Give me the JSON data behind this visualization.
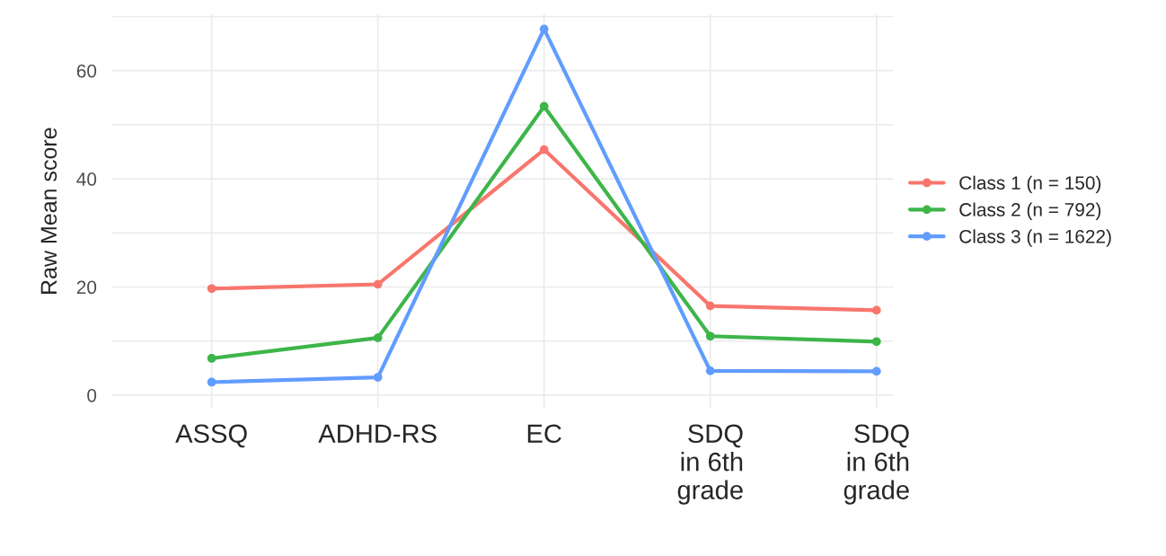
{
  "chart_data": {
    "type": "line",
    "ylabel": "Raw Mean score",
    "categories": [
      "ASSQ",
      "ADHD-RS",
      "EC",
      "SDQ\nin 6th\ngrade",
      "SDQ\nin 6th\ngrade"
    ],
    "series": [
      {
        "name": "Class 1 (n = 150)",
        "color": "#f8766d",
        "values": [
          19.7,
          20.5,
          45.4,
          16.5,
          15.7
        ]
      },
      {
        "name": "Class 2 (n = 792)",
        "color": "#3db54a",
        "values": [
          6.8,
          10.6,
          53.4,
          10.9,
          9.9
        ]
      },
      {
        "name": "Class 3 (n = 1622)",
        "color": "#619cff",
        "values": [
          2.4,
          3.3,
          67.7,
          4.5,
          4.4
        ]
      }
    ],
    "ylim": [
      -2.5,
      70.5
    ],
    "yticks": [
      0,
      {
        "value": 10,
        "label": null
      },
      20,
      {
        "value": 30,
        "label": null
      },
      40,
      {
        "value": 50,
        "label": null
      },
      60,
      {
        "value": 70,
        "label": null
      }
    ],
    "grid": true,
    "legend": "right",
    "marker": "circle",
    "line_style": "solid"
  }
}
